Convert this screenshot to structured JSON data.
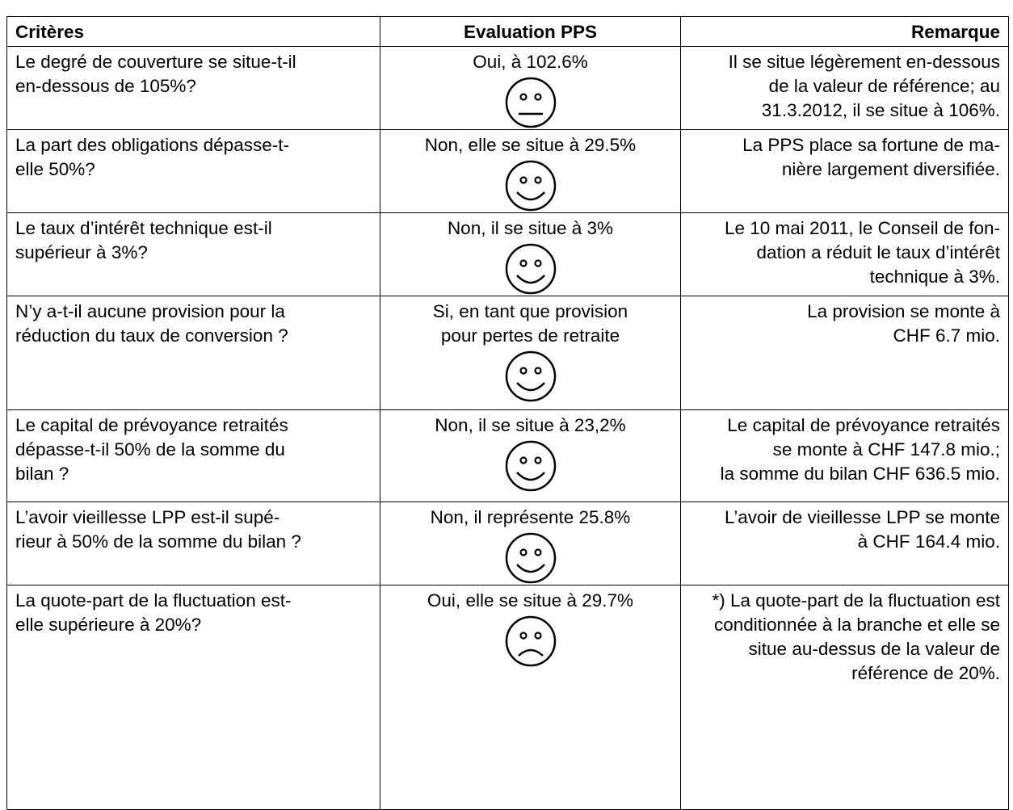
{
  "table": {
    "header": [
      "Critères",
      "Evaluation PPS",
      "Remarque"
    ],
    "rows": [
      [
        [
          "Le degré de couverture se situe-t-il",
          "en-dessous de 105%?"
        ],
        [
          "Oui, à 102.6%"
        ],
        [
          "Il se situe légèrement en-dessous",
          "de la valeur de référence; au",
          "31.3.2012, il se situe à 106%."
        ]
      ],
      [
        [
          "La part des obligations dépasse-t-",
          "elle 50%?"
        ],
        [
          "Non, elle se situe à 29.5%"
        ],
        [
          "La PPS place sa fortune de ma-",
          "nière largement diversifiée."
        ]
      ],
      [
        [
          "Le taux d’intérêt technique est-il",
          "supérieur à 3%?"
        ],
        [
          "Non, il se situe à 3%"
        ],
        [
          "Le 10 mai 2011, le Conseil de fon-",
          "dation a réduit le taux d’intérêt",
          "technique à 3%."
        ]
      ],
      [
        [
          "N’y a-t-il aucune provision pour la",
          "réduction du taux de conversion ?"
        ],
        [
          "Si, en tant que provision",
          "pour pertes de retraite"
        ],
        [
          "La provision se monte à",
          "CHF 6.7 mio."
        ]
      ],
      [
        [
          "Le capital de prévoyance retraités",
          "dépasse-t-il 50% de la somme du",
          "bilan ?"
        ],
        [
          "Non, il se situe à 23,2%"
        ],
        [
          "Le capital de prévoyance retraités",
          "se monte à CHF 147.8 mio.;",
          "la somme du bilan CHF 636.5 mio."
        ]
      ],
      [
        [
          "L’avoir vieillesse LPP est-il supé-",
          "rieur à 50% de la somme du bilan ?"
        ],
        [
          "Non, il représente 25.8%"
        ],
        [
          "L’avoir de vieillesse LPP se monte",
          "à CHF 164.4 mio."
        ]
      ],
      [
        [
          "La quote-part de la fluctuation est-",
          "elle supérieure à 20%?"
        ],
        [
          "Oui, elle se situe à 29.7%"
        ],
        [
          "*) La quote-part de la fluctuation est",
          "conditionnée à la branche et elle se",
          "situe au-dessus de la valeur de",
          "référence de 20%."
        ]
      ]
    ]
  }
}
